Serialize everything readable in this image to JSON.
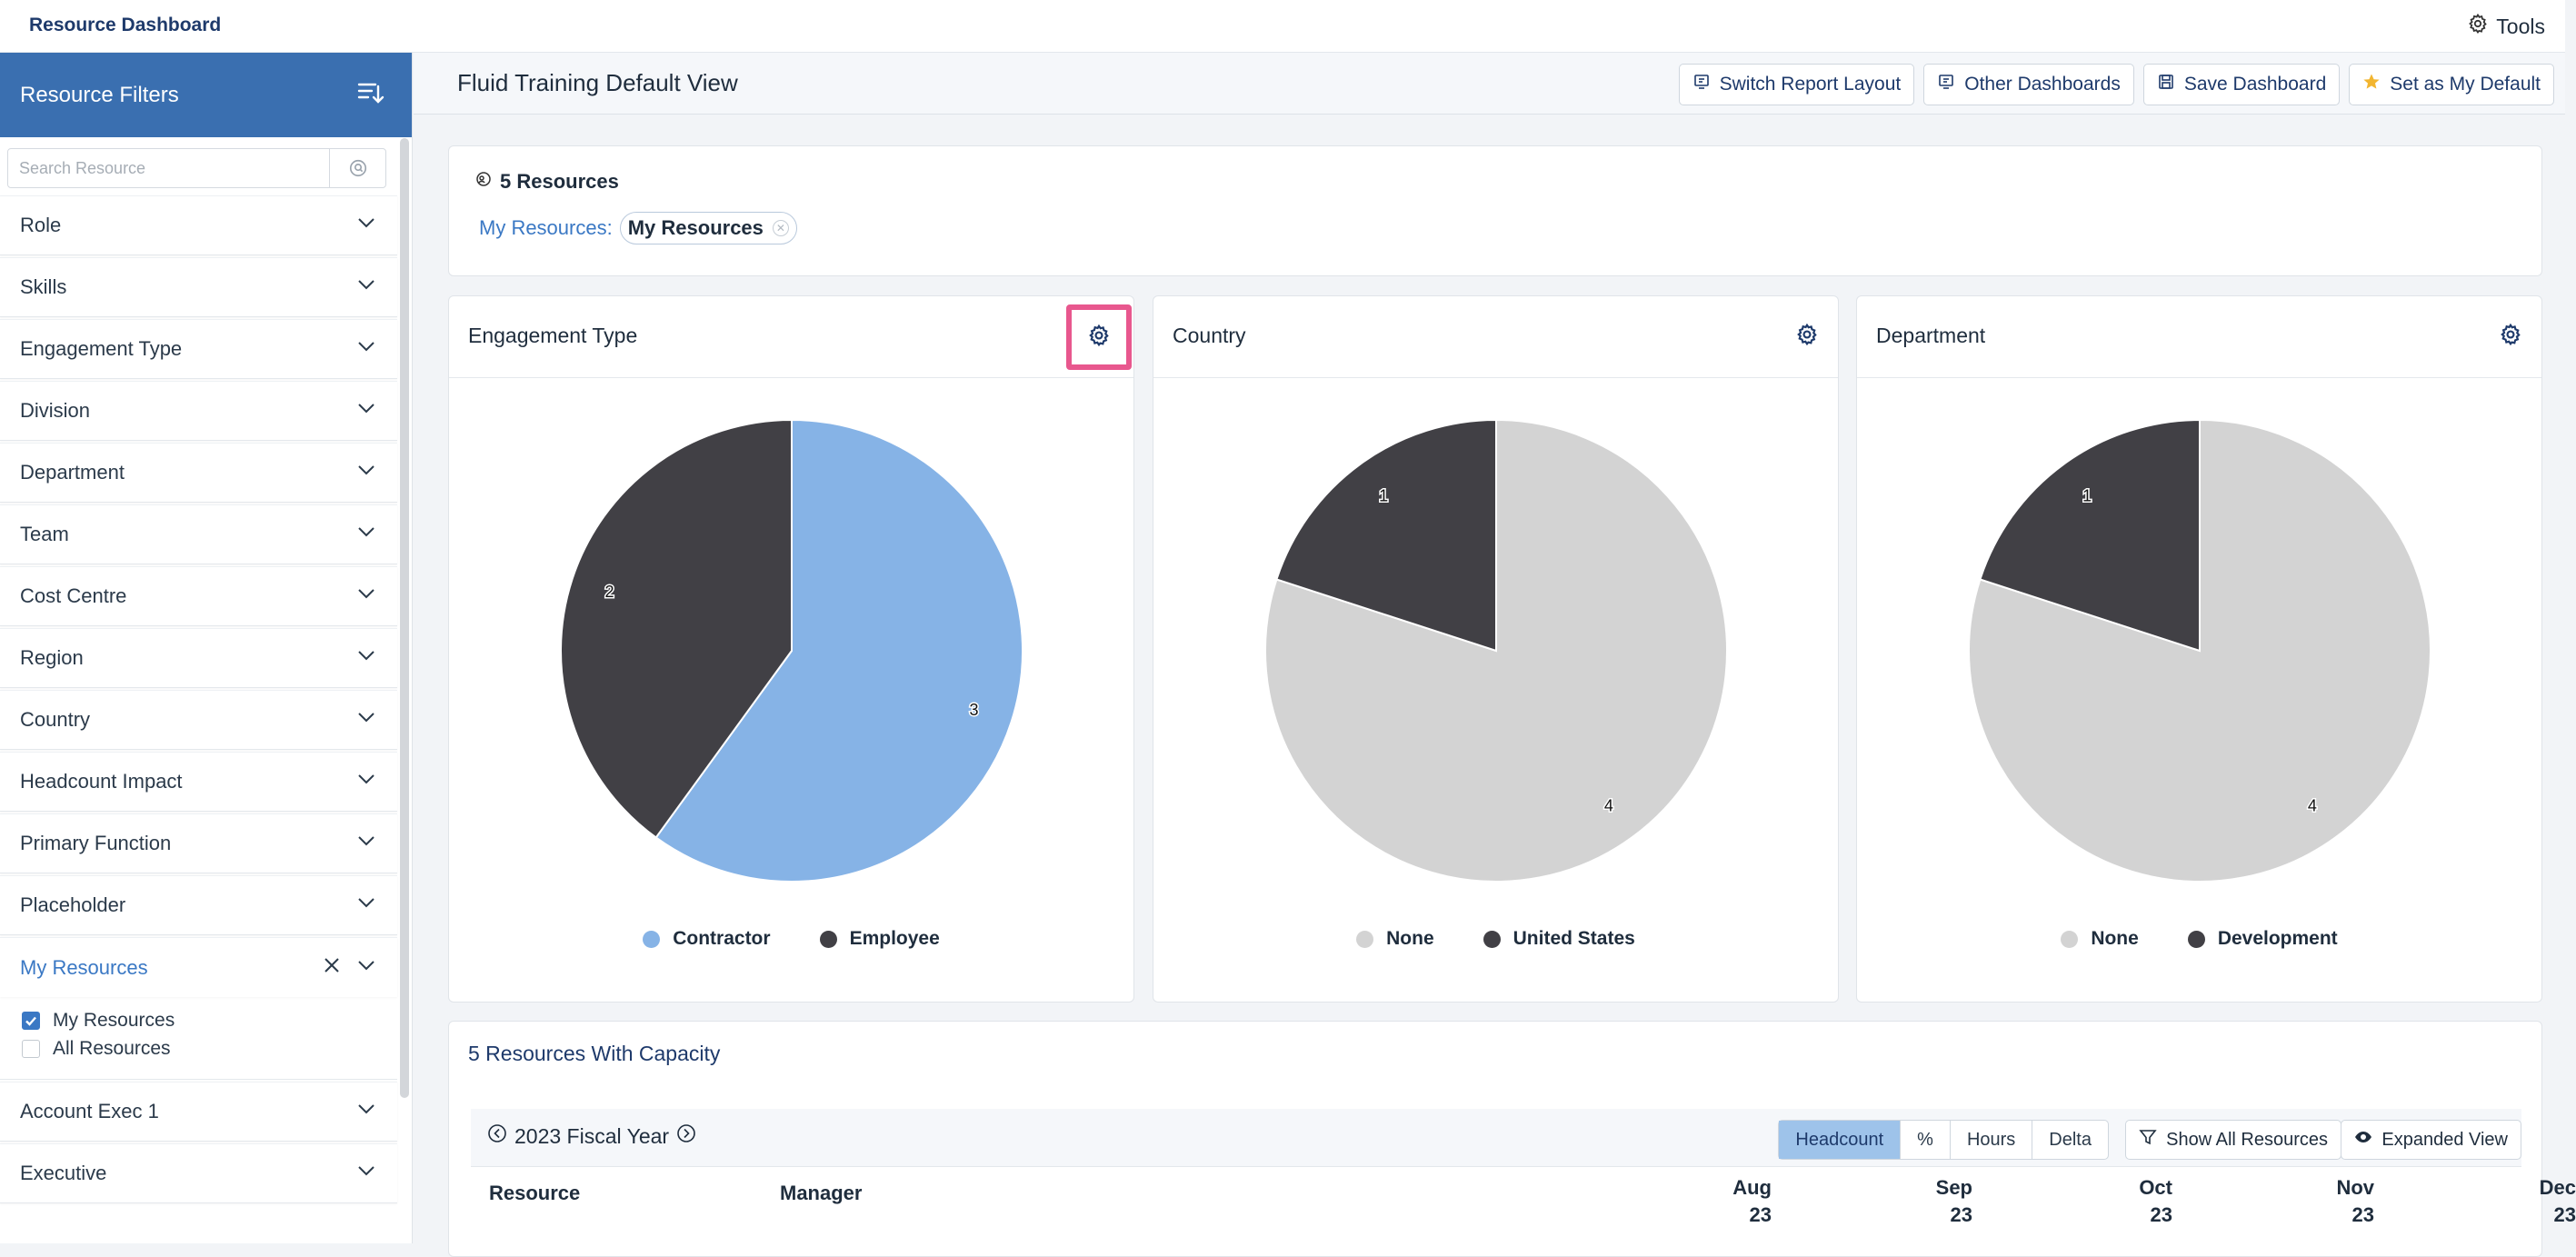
{
  "app": {
    "title": "Resource Dashboard",
    "tools_label": "Tools"
  },
  "sidebar": {
    "title": "Resource Filters",
    "search_placeholder": "Search Resource",
    "items": [
      {
        "label": "Role"
      },
      {
        "label": "Skills"
      },
      {
        "label": "Engagement Type"
      },
      {
        "label": "Division"
      },
      {
        "label": "Department"
      },
      {
        "label": "Team"
      },
      {
        "label": "Cost Centre"
      },
      {
        "label": "Region"
      },
      {
        "label": "Country"
      },
      {
        "label": "Headcount Impact"
      },
      {
        "label": "Primary Function"
      },
      {
        "label": "Placeholder"
      }
    ],
    "my_resources": {
      "label": "My Resources",
      "options": [
        {
          "label": "My Resources",
          "checked": true
        },
        {
          "label": "All Resources",
          "checked": false
        }
      ]
    },
    "items_after": [
      {
        "label": "Account Exec 1"
      },
      {
        "label": "Executive"
      }
    ]
  },
  "header": {
    "view_title": "Fluid Training Default View",
    "buttons": {
      "switch_layout": "Switch Report Layout",
      "other_dashboards": "Other Dashboards",
      "save_dashboard": "Save Dashboard",
      "set_default": "Set as My Default"
    }
  },
  "resources": {
    "count_label": "5 Resources",
    "filter_label": "My Resources:",
    "filter_value": "My Resources"
  },
  "colors": {
    "accent": "#3a6fb0",
    "dark_slice": "#414045",
    "light_blue_slice": "#86b3e6",
    "grey_slice": "#d3d3d3",
    "highlight": "#e8578e"
  },
  "chart_data": [
    {
      "type": "pie",
      "title": "Engagement Type",
      "labels": [
        "Contractor",
        "Employee"
      ],
      "values": [
        3,
        2
      ],
      "colors": [
        "#86b3e6",
        "#414045"
      ]
    },
    {
      "type": "pie",
      "title": "Country",
      "labels": [
        "None",
        "United States"
      ],
      "values": [
        4,
        1
      ],
      "colors": [
        "#d3d3d3",
        "#414045"
      ]
    },
    {
      "type": "pie",
      "title": "Department",
      "labels": [
        "None",
        "Development"
      ],
      "values": [
        4,
        1
      ],
      "colors": [
        "#d3d3d3",
        "#414045"
      ]
    }
  ],
  "capacity": {
    "title": "5 Resources With Capacity",
    "fiscal_year": "2023 Fiscal Year",
    "modes": [
      "Headcount",
      "%",
      "Hours",
      "Delta"
    ],
    "active_mode": "Headcount",
    "show_all_label": "Show All Resources",
    "expanded_view_label": "Expanded View",
    "columns": {
      "resource": "Resource",
      "manager": "Manager",
      "months": [
        {
          "m": "Aug",
          "y": "23"
        },
        {
          "m": "Sep",
          "y": "23"
        },
        {
          "m": "Oct",
          "y": "23"
        },
        {
          "m": "Nov",
          "y": "23"
        },
        {
          "m": "Dec",
          "y": "23"
        }
      ]
    }
  }
}
